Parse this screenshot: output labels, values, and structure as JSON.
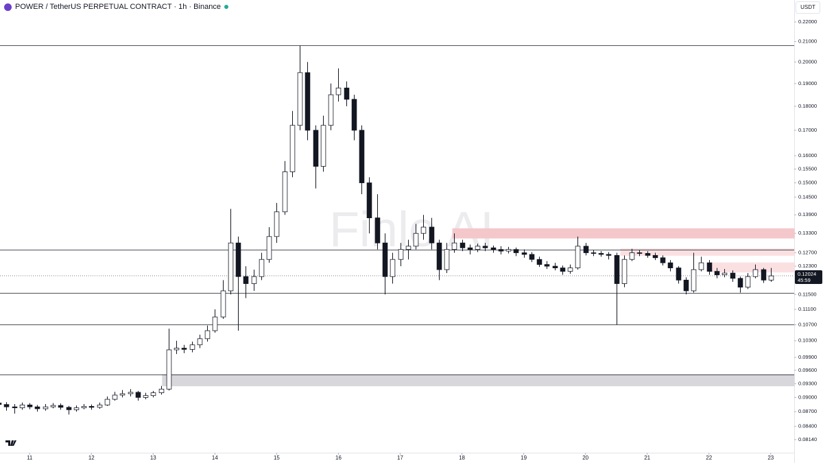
{
  "chart_data": {
    "type": "candlestick",
    "title": "POWER / TetherUS PERPETUAL CONTRACT · 1h · Binance",
    "currency": "USDT",
    "watermark": "Finlo AI",
    "x": [
      10.5,
      10.625,
      10.75,
      10.875,
      11,
      11.125,
      11.25,
      11.375,
      11.5,
      11.625,
      11.75,
      11.875,
      12,
      12.125,
      12.25,
      12.375,
      12.5,
      12.625,
      12.75,
      12.875,
      13,
      13.125,
      13.25,
      13.375,
      13.5,
      13.625,
      13.75,
      13.875,
      14,
      14.125,
      14.25,
      14.375,
      14.5,
      14.625,
      14.75,
      14.875,
      15,
      15.125,
      15.25,
      15.375,
      15.5,
      15.625,
      15.75,
      15.875,
      16,
      16.125,
      16.25,
      16.375,
      16.5,
      16.625,
      16.75,
      16.875,
      17,
      17.125,
      17.25,
      17.375,
      17.5,
      17.625,
      17.75,
      17.875,
      18,
      18.125,
      18.25,
      18.375,
      18.5,
      18.625,
      18.75,
      18.875,
      19,
      19.125,
      19.25,
      19.375,
      19.5,
      19.625,
      19.75,
      19.875,
      20,
      20.125,
      20.25,
      20.375,
      20.5,
      20.625,
      20.75,
      20.875,
      21,
      21.125,
      21.25,
      21.375,
      21.5,
      21.625,
      21.75,
      21.875,
      22,
      22.125,
      22.25,
      22.375,
      22.5,
      22.625,
      22.75,
      22.875,
      23
    ],
    "open": [
      0.0888,
      0.0885,
      0.088,
      0.0878,
      0.0884,
      0.088,
      0.0876,
      0.088,
      0.0883,
      0.0879,
      0.0874,
      0.0878,
      0.0881,
      0.0879,
      0.0884,
      0.0896,
      0.0905,
      0.0908,
      0.0911,
      0.09,
      0.0904,
      0.091,
      0.0918,
      0.1008,
      0.1012,
      0.1009,
      0.102,
      0.1035,
      0.1055,
      0.109,
      0.116,
      0.13,
      0.12,
      0.118,
      0.12,
      0.125,
      0.132,
      0.14,
      0.154,
      0.172,
      0.195,
      0.17,
      0.156,
      0.172,
      0.185,
      0.188,
      0.183,
      0.17,
      0.15,
      0.138,
      0.13,
      0.12,
      0.125,
      0.128,
      0.129,
      0.133,
      0.135,
      0.13,
      0.122,
      0.128,
      0.13,
      0.1285,
      0.128,
      0.129,
      0.1285,
      0.128,
      0.1275,
      0.128,
      0.127,
      0.1265,
      0.125,
      0.1235,
      0.123,
      0.1225,
      0.1215,
      0.1225,
      0.129,
      0.127,
      0.1268,
      0.1265,
      0.1262,
      0.118,
      0.125,
      0.127,
      0.1268,
      0.1262,
      0.1255,
      0.124,
      0.1225,
      0.119,
      0.116,
      0.122,
      0.124,
      0.1215,
      0.1205,
      0.121,
      0.1195,
      0.117,
      0.12,
      0.122,
      0.119
    ],
    "high": [
      0.0895,
      0.089,
      0.0886,
      0.0889,
      0.0888,
      0.0884,
      0.0886,
      0.0888,
      0.0887,
      0.0882,
      0.0883,
      0.0886,
      0.0885,
      0.0889,
      0.0902,
      0.0912,
      0.0916,
      0.0918,
      0.0914,
      0.091,
      0.0914,
      0.0925,
      0.106,
      0.103,
      0.102,
      0.1028,
      0.1045,
      0.1068,
      0.111,
      0.119,
      0.141,
      0.132,
      0.123,
      0.122,
      0.127,
      0.135,
      0.143,
      0.158,
      0.178,
      0.208,
      0.2,
      0.172,
      0.176,
      0.19,
      0.197,
      0.191,
      0.185,
      0.172,
      0.152,
      0.146,
      0.133,
      0.127,
      0.13,
      0.131,
      0.136,
      0.139,
      0.138,
      0.131,
      0.13,
      0.133,
      0.131,
      0.1295,
      0.1298,
      0.13,
      0.1292,
      0.129,
      0.1288,
      0.1286,
      0.128,
      0.1272,
      0.1258,
      0.1245,
      0.124,
      0.1232,
      0.1235,
      0.132,
      0.13,
      0.1278,
      0.1275,
      0.1272,
      0.127,
      0.1262,
      0.1282,
      0.1278,
      0.1275,
      0.127,
      0.1262,
      0.1248,
      0.123,
      0.1198,
      0.127,
      0.1258,
      0.1248,
      0.1225,
      0.1222,
      0.1218,
      0.12,
      0.121,
      0.1235,
      0.1225,
      0.1225
    ],
    "low": [
      0.0878,
      0.0872,
      0.0866,
      0.0874,
      0.0875,
      0.087,
      0.0872,
      0.0877,
      0.0874,
      0.0864,
      0.087,
      0.0875,
      0.0874,
      0.0876,
      0.0882,
      0.0893,
      0.09,
      0.0902,
      0.0893,
      0.0896,
      0.09,
      0.0906,
      0.0915,
      0.0998,
      0.1,
      0.1002,
      0.1012,
      0.1028,
      0.105,
      0.1085,
      0.115,
      0.1055,
      0.114,
      0.116,
      0.119,
      0.124,
      0.13,
      0.139,
      0.152,
      0.17,
      0.166,
      0.148,
      0.154,
      0.17,
      0.182,
      0.18,
      0.166,
      0.146,
      0.133,
      0.128,
      0.115,
      0.118,
      0.123,
      0.125,
      0.128,
      0.131,
      0.128,
      0.119,
      0.121,
      0.127,
      0.1275,
      0.1265,
      0.1272,
      0.1275,
      0.127,
      0.1265,
      0.1268,
      0.126,
      0.1255,
      0.1242,
      0.1228,
      0.1222,
      0.1218,
      0.1205,
      0.1208,
      0.122,
      0.1262,
      0.126,
      0.1258,
      0.125,
      0.107,
      0.117,
      0.1245,
      0.126,
      0.1255,
      0.1248,
      0.1232,
      0.1215,
      0.118,
      0.115,
      0.1155,
      0.1215,
      0.1205,
      0.1195,
      0.1198,
      0.1185,
      0.1155,
      0.1165,
      0.1195,
      0.1182,
      0.1185
    ],
    "close": [
      0.0885,
      0.088,
      0.0878,
      0.0884,
      0.088,
      0.0876,
      0.088,
      0.0883,
      0.0879,
      0.0874,
      0.0878,
      0.0881,
      0.0879,
      0.0884,
      0.0896,
      0.0905,
      0.0908,
      0.0911,
      0.09,
      0.0904,
      0.091,
      0.0918,
      0.1008,
      0.1012,
      0.1009,
      0.102,
      0.1035,
      0.1055,
      0.109,
      0.116,
      0.13,
      0.12,
      0.118,
      0.12,
      0.125,
      0.132,
      0.14,
      0.154,
      0.172,
      0.195,
      0.17,
      0.156,
      0.172,
      0.185,
      0.188,
      0.183,
      0.17,
      0.15,
      0.138,
      0.13,
      0.12,
      0.125,
      0.128,
      0.129,
      0.133,
      0.135,
      0.13,
      0.122,
      0.128,
      0.13,
      0.1285,
      0.128,
      0.129,
      0.1285,
      0.128,
      0.1275,
      0.128,
      0.127,
      0.1265,
      0.125,
      0.1235,
      0.123,
      0.1225,
      0.1215,
      0.1225,
      0.129,
      0.127,
      0.1268,
      0.1265,
      0.1262,
      0.118,
      0.125,
      0.127,
      0.1268,
      0.1262,
      0.1255,
      0.124,
      0.1225,
      0.119,
      0.116,
      0.122,
      0.124,
      0.1215,
      0.1205,
      0.121,
      0.1195,
      0.117,
      0.12,
      0.122,
      0.119,
      0.1202
    ],
    "up_color": "#ffffff",
    "down_color": "#131722",
    "outline_color": "#131722",
    "log_scale": true,
    "ylim": [
      0.0789,
      0.2318
    ],
    "yticks": [
      {
        "value": 0.22,
        "label": "0.22000"
      },
      {
        "value": 0.21,
        "label": "0.21000"
      },
      {
        "value": 0.2,
        "label": "0.20000"
      },
      {
        "value": 0.19,
        "label": "0.19000"
      },
      {
        "value": 0.18,
        "label": "0.18000"
      },
      {
        "value": 0.17,
        "label": "0.17000"
      },
      {
        "value": 0.16,
        "label": "0.16000"
      },
      {
        "value": 0.155,
        "label": "0.15500"
      },
      {
        "value": 0.15,
        "label": "0.15000"
      },
      {
        "value": 0.145,
        "label": "0.14500"
      },
      {
        "value": 0.139,
        "label": "0.13900"
      },
      {
        "value": 0.133,
        "label": "0.13300"
      },
      {
        "value": 0.127,
        "label": "0.12700"
      },
      {
        "value": 0.123,
        "label": "0.12300"
      },
      {
        "value": 0.115,
        "label": "0.11500"
      },
      {
        "value": 0.111,
        "label": "0.11100"
      },
      {
        "value": 0.107,
        "label": "0.10700"
      },
      {
        "value": 0.103,
        "label": "0.10300"
      },
      {
        "value": 0.099,
        "label": "0.09900"
      },
      {
        "value": 0.096,
        "label": "0.09600"
      },
      {
        "value": 0.093,
        "label": "0.09300"
      },
      {
        "value": 0.09,
        "label": "0.09000"
      },
      {
        "value": 0.087,
        "label": "0.08700"
      },
      {
        "value": 0.084,
        "label": "0.08400"
      },
      {
        "value": 0.0814,
        "label": "0.08140"
      }
    ],
    "xlim": [
      10.52,
      23.38
    ],
    "xticks": [
      11,
      12,
      13,
      14,
      15,
      16,
      17,
      18,
      19,
      20,
      21,
      22,
      23
    ],
    "levels": [
      0.208,
      0.128,
      0.1155,
      0.107,
      0.095
    ],
    "zones": [
      {
        "start": 17.85,
        "low": 0.1315,
        "high": 0.1345,
        "color": "#f4c7cb"
      },
      {
        "start": 20.57,
        "low": 0.1262,
        "high": 0.1282,
        "color": "#fbe0e2"
      },
      {
        "start": 22.0,
        "low": 0.1213,
        "high": 0.124,
        "color": "#fbe0e2"
      },
      {
        "start": 13.15,
        "low": 0.0925,
        "high": 0.095,
        "color": "#d8d8dc"
      }
    ],
    "last_price": {
      "value": 0.12024,
      "label": "0.12024"
    },
    "countdown": "45:59"
  }
}
